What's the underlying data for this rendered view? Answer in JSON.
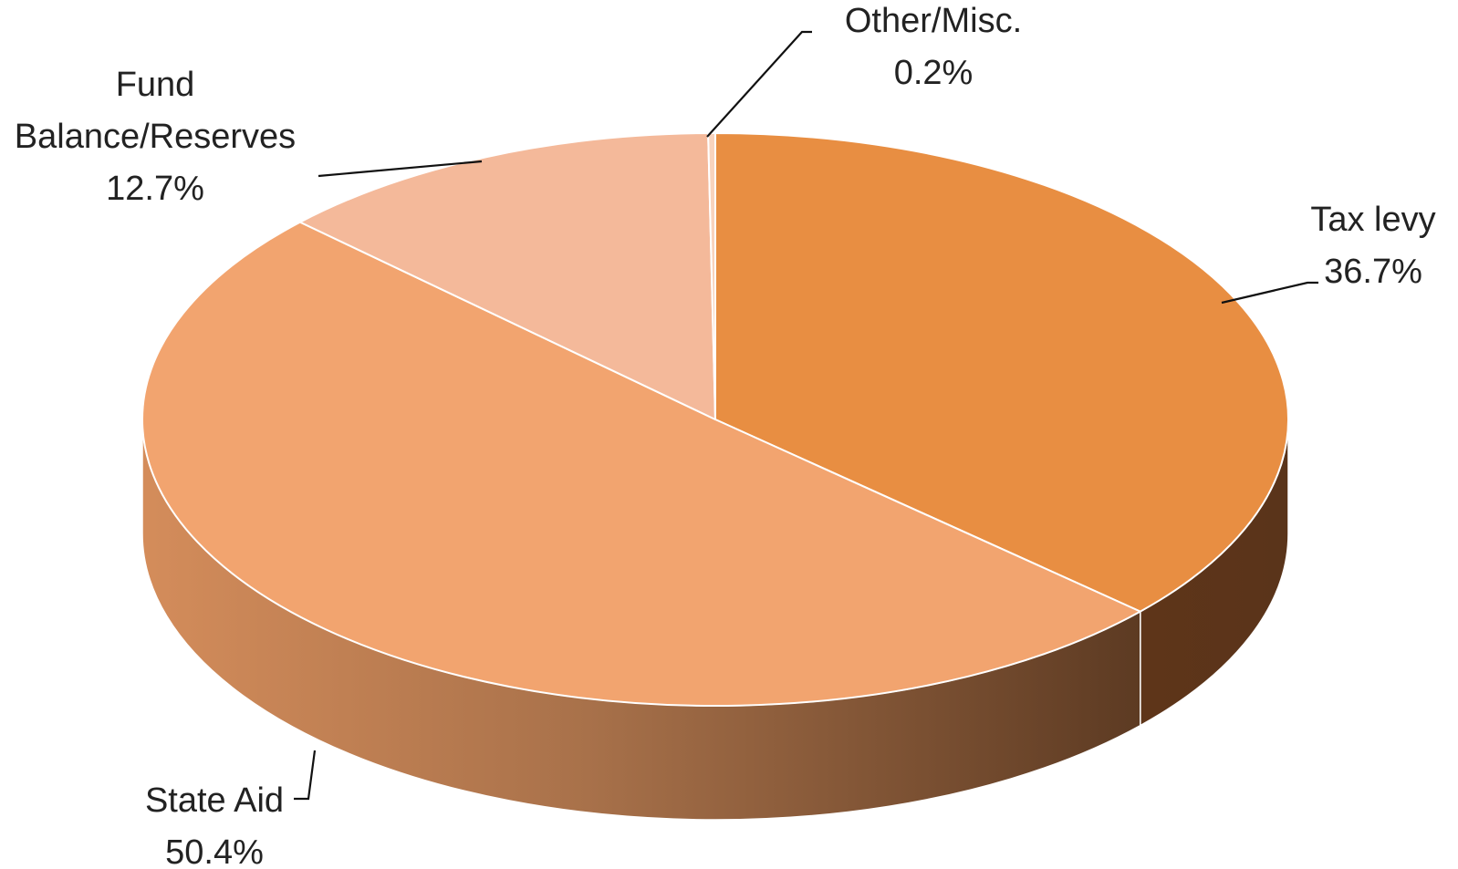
{
  "chart_data": {
    "type": "pie",
    "style": "3d",
    "title": "",
    "slices": [
      {
        "label_lines": [
          "Tax levy"
        ],
        "value_text": "36.7%",
        "value": 36.7,
        "color": "#E88E42"
      },
      {
        "label_lines": [
          "State Aid"
        ],
        "value_text": "50.4%",
        "value": 50.4,
        "color": "#F2A46F"
      },
      {
        "label_lines": [
          "Fund",
          "Balance/Reserves"
        ],
        "value_text": "12.7%",
        "value": 12.7,
        "color": "#F4B99A"
      },
      {
        "label_lines": [
          "Other/Misc."
        ],
        "value_text": "0.2%",
        "value": 0.2,
        "color": "#F8D3BD"
      }
    ]
  }
}
